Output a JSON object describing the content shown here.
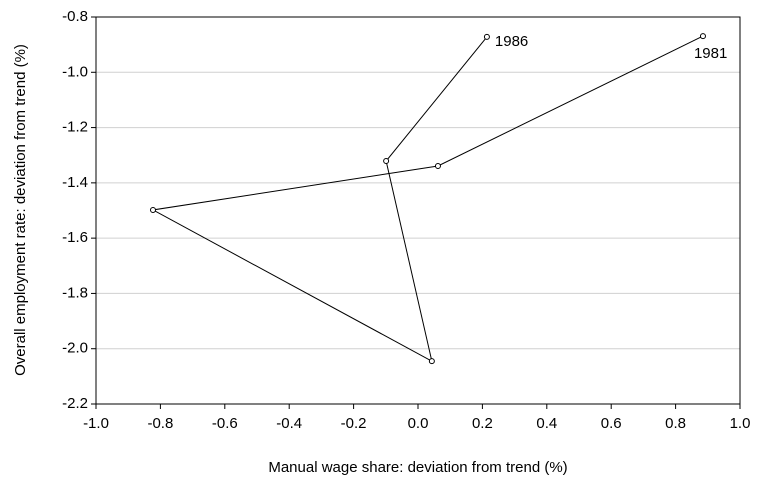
{
  "chart_data": {
    "type": "line",
    "x_label": "Manual wage share: deviation from trend (%)",
    "y_label": "Overall employment rate: deviation from trend (%)",
    "x": [
      0.885,
      0.062,
      -0.823,
      0.043,
      -0.099,
      0.214
    ],
    "y": [
      -0.869,
      -1.339,
      -1.498,
      -2.045,
      -1.321,
      -0.872
    ],
    "labels": [
      "1981",
      null,
      null,
      null,
      null,
      "1986"
    ],
    "color": "#000000",
    "xlim": [
      -1.0,
      1.0
    ],
    "xticks": [
      {
        "value": -1,
        "label": "-1.0"
      },
      -0.8,
      -0.6,
      -0.4,
      -0.2,
      {
        "value": 0,
        "label": "0.0"
      },
      0.2,
      0.4,
      0.6,
      0.8,
      {
        "value": 1,
        "label": "1.0"
      }
    ],
    "ylim": [
      -2.2,
      -0.8
    ],
    "yticks": [
      -2.2,
      {
        "value": -2,
        "label": "-2.0"
      },
      -1.8,
      -1.6,
      -1.4,
      -1.2,
      {
        "value": -1,
        "label": "-1.0"
      },
      -0.8
    ],
    "grid": true
  }
}
